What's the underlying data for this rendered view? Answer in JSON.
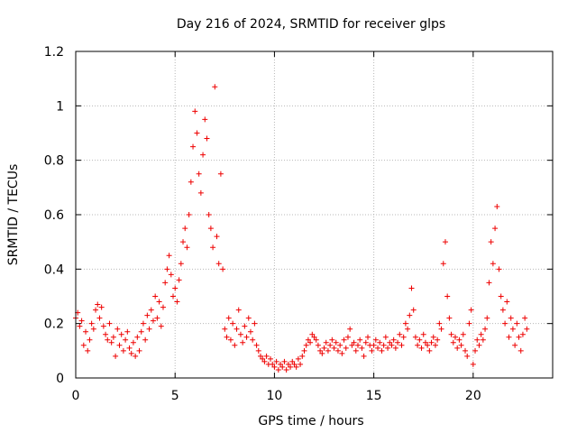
{
  "chart_data": {
    "type": "scatter",
    "title": "Day 216 of 2024, SRMTID for receiver glps",
    "xlabel": "GPS time / hours",
    "ylabel": "SRMTID / TECUs",
    "xlim": [
      0,
      24
    ],
    "ylim": [
      0,
      1.2
    ],
    "xticks": [
      0,
      5,
      10,
      15,
      20
    ],
    "yticks": [
      0,
      0.2,
      0.4,
      0.6,
      0.8,
      1,
      1.2
    ],
    "xtick_labels": [
      "0",
      "5",
      "10",
      "15",
      "20"
    ],
    "ytick_labels": [
      "0",
      "0.2",
      "0.4",
      "0.6",
      "0.8",
      "1",
      "1.2"
    ],
    "grid": true,
    "marker": "plus",
    "colors": {
      "series": "#ee0000",
      "grid": "#b8b8b8",
      "axes": "#000000"
    },
    "series": [
      {
        "name": "SRMTID",
        "points": [
          [
            0.0,
            0.22
          ],
          [
            0.1,
            0.24
          ],
          [
            0.2,
            0.19
          ],
          [
            0.3,
            0.21
          ],
          [
            0.4,
            0.12
          ],
          [
            0.5,
            0.17
          ],
          [
            0.6,
            0.1
          ],
          [
            0.7,
            0.14
          ],
          [
            0.8,
            0.2
          ],
          [
            0.9,
            0.18
          ],
          [
            1.0,
            0.25
          ],
          [
            1.1,
            0.27
          ],
          [
            1.2,
            0.22
          ],
          [
            1.3,
            0.26
          ],
          [
            1.4,
            0.19
          ],
          [
            1.5,
            0.16
          ],
          [
            1.6,
            0.14
          ],
          [
            1.7,
            0.2
          ],
          [
            1.8,
            0.13
          ],
          [
            1.9,
            0.15
          ],
          [
            2.0,
            0.08
          ],
          [
            2.1,
            0.18
          ],
          [
            2.2,
            0.12
          ],
          [
            2.3,
            0.16
          ],
          [
            2.4,
            0.1
          ],
          [
            2.5,
            0.14
          ],
          [
            2.6,
            0.17
          ],
          [
            2.7,
            0.11
          ],
          [
            2.8,
            0.09
          ],
          [
            2.9,
            0.13
          ],
          [
            3.0,
            0.08
          ],
          [
            3.1,
            0.15
          ],
          [
            3.2,
            0.1
          ],
          [
            3.3,
            0.17
          ],
          [
            3.4,
            0.2
          ],
          [
            3.5,
            0.14
          ],
          [
            3.6,
            0.23
          ],
          [
            3.7,
            0.18
          ],
          [
            3.8,
            0.25
          ],
          [
            3.9,
            0.21
          ],
          [
            4.0,
            0.3
          ],
          [
            4.1,
            0.22
          ],
          [
            4.2,
            0.28
          ],
          [
            4.3,
            0.19
          ],
          [
            4.4,
            0.26
          ],
          [
            4.5,
            0.35
          ],
          [
            4.6,
            0.4
          ],
          [
            4.7,
            0.45
          ],
          [
            4.8,
            0.38
          ],
          [
            4.9,
            0.3
          ],
          [
            5.0,
            0.33
          ],
          [
            5.1,
            0.28
          ],
          [
            5.2,
            0.36
          ],
          [
            5.3,
            0.42
          ],
          [
            5.4,
            0.5
          ],
          [
            5.5,
            0.55
          ],
          [
            5.6,
            0.48
          ],
          [
            5.7,
            0.6
          ],
          [
            5.8,
            0.72
          ],
          [
            5.9,
            0.85
          ],
          [
            6.0,
            0.98
          ],
          [
            6.1,
            0.9
          ],
          [
            6.2,
            0.75
          ],
          [
            6.3,
            0.68
          ],
          [
            6.4,
            0.82
          ],
          [
            6.5,
            0.95
          ],
          [
            6.6,
            0.88
          ],
          [
            6.7,
            0.6
          ],
          [
            6.8,
            0.55
          ],
          [
            6.9,
            0.48
          ],
          [
            7.0,
            1.07
          ],
          [
            7.1,
            0.52
          ],
          [
            7.2,
            0.42
          ],
          [
            7.3,
            0.75
          ],
          [
            7.4,
            0.4
          ],
          [
            7.5,
            0.18
          ],
          [
            7.6,
            0.15
          ],
          [
            7.7,
            0.22
          ],
          [
            7.8,
            0.14
          ],
          [
            7.9,
            0.2
          ],
          [
            8.0,
            0.12
          ],
          [
            8.1,
            0.18
          ],
          [
            8.2,
            0.25
          ],
          [
            8.3,
            0.16
          ],
          [
            8.4,
            0.13
          ],
          [
            8.5,
            0.19
          ],
          [
            8.6,
            0.15
          ],
          [
            8.7,
            0.22
          ],
          [
            8.8,
            0.17
          ],
          [
            8.9,
            0.14
          ],
          [
            9.0,
            0.2
          ],
          [
            9.1,
            0.12
          ],
          [
            9.2,
            0.1
          ],
          [
            9.3,
            0.08
          ],
          [
            9.4,
            0.07
          ],
          [
            9.5,
            0.06
          ],
          [
            9.6,
            0.08
          ],
          [
            9.7,
            0.05
          ],
          [
            9.8,
            0.07
          ],
          [
            9.9,
            0.05
          ],
          [
            10.0,
            0.04
          ],
          [
            10.1,
            0.06
          ],
          [
            10.2,
            0.03
          ],
          [
            10.3,
            0.05
          ],
          [
            10.4,
            0.04
          ],
          [
            10.5,
            0.06
          ],
          [
            10.6,
            0.03
          ],
          [
            10.7,
            0.05
          ],
          [
            10.8,
            0.04
          ],
          [
            10.9,
            0.06
          ],
          [
            11.0,
            0.05
          ],
          [
            11.1,
            0.04
          ],
          [
            11.2,
            0.07
          ],
          [
            11.3,
            0.05
          ],
          [
            11.4,
            0.08
          ],
          [
            11.5,
            0.1
          ],
          [
            11.6,
            0.12
          ],
          [
            11.7,
            0.14
          ],
          [
            11.8,
            0.13
          ],
          [
            11.9,
            0.16
          ],
          [
            12.0,
            0.15
          ],
          [
            12.1,
            0.14
          ],
          [
            12.2,
            0.12
          ],
          [
            12.3,
            0.1
          ],
          [
            12.4,
            0.09
          ],
          [
            12.5,
            0.11
          ],
          [
            12.6,
            0.13
          ],
          [
            12.7,
            0.1
          ],
          [
            12.8,
            0.12
          ],
          [
            12.9,
            0.14
          ],
          [
            13.0,
            0.11
          ],
          [
            13.1,
            0.13
          ],
          [
            13.2,
            0.1
          ],
          [
            13.3,
            0.12
          ],
          [
            13.4,
            0.09
          ],
          [
            13.5,
            0.14
          ],
          [
            13.6,
            0.11
          ],
          [
            13.7,
            0.15
          ],
          [
            13.8,
            0.18
          ],
          [
            13.9,
            0.12
          ],
          [
            14.0,
            0.13
          ],
          [
            14.1,
            0.1
          ],
          [
            14.2,
            0.12
          ],
          [
            14.3,
            0.14
          ],
          [
            14.4,
            0.11
          ],
          [
            14.5,
            0.08
          ],
          [
            14.6,
            0.13
          ],
          [
            14.7,
            0.15
          ],
          [
            14.8,
            0.12
          ],
          [
            14.9,
            0.1
          ],
          [
            15.0,
            0.12
          ],
          [
            15.1,
            0.14
          ],
          [
            15.2,
            0.11
          ],
          [
            15.3,
            0.13
          ],
          [
            15.4,
            0.1
          ],
          [
            15.5,
            0.12
          ],
          [
            15.6,
            0.15
          ],
          [
            15.7,
            0.11
          ],
          [
            15.8,
            0.13
          ],
          [
            15.9,
            0.12
          ],
          [
            16.0,
            0.14
          ],
          [
            16.1,
            0.11
          ],
          [
            16.2,
            0.13
          ],
          [
            16.3,
            0.16
          ],
          [
            16.4,
            0.12
          ],
          [
            16.5,
            0.15
          ],
          [
            16.6,
            0.2
          ],
          [
            16.7,
            0.18
          ],
          [
            16.8,
            0.23
          ],
          [
            16.9,
            0.33
          ],
          [
            17.0,
            0.25
          ],
          [
            17.1,
            0.15
          ],
          [
            17.2,
            0.12
          ],
          [
            17.3,
            0.14
          ],
          [
            17.4,
            0.11
          ],
          [
            17.5,
            0.16
          ],
          [
            17.6,
            0.13
          ],
          [
            17.7,
            0.12
          ],
          [
            17.8,
            0.1
          ],
          [
            17.9,
            0.13
          ],
          [
            18.0,
            0.15
          ],
          [
            18.1,
            0.12
          ],
          [
            18.2,
            0.14
          ],
          [
            18.3,
            0.2
          ],
          [
            18.4,
            0.18
          ],
          [
            18.5,
            0.42
          ],
          [
            18.6,
            0.5
          ],
          [
            18.7,
            0.3
          ],
          [
            18.8,
            0.22
          ],
          [
            18.9,
            0.16
          ],
          [
            19.0,
            0.13
          ],
          [
            19.1,
            0.15
          ],
          [
            19.2,
            0.11
          ],
          [
            19.3,
            0.14
          ],
          [
            19.4,
            0.12
          ],
          [
            19.5,
            0.16
          ],
          [
            19.6,
            0.1
          ],
          [
            19.7,
            0.08
          ],
          [
            19.8,
            0.2
          ],
          [
            19.9,
            0.25
          ],
          [
            20.0,
            0.05
          ],
          [
            20.1,
            0.1
          ],
          [
            20.2,
            0.14
          ],
          [
            20.3,
            0.12
          ],
          [
            20.4,
            0.16
          ],
          [
            20.5,
            0.14
          ],
          [
            20.6,
            0.18
          ],
          [
            20.7,
            0.22
          ],
          [
            20.8,
            0.35
          ],
          [
            20.9,
            0.5
          ],
          [
            21.0,
            0.42
          ],
          [
            21.1,
            0.55
          ],
          [
            21.2,
            0.63
          ],
          [
            21.3,
            0.4
          ],
          [
            21.4,
            0.3
          ],
          [
            21.5,
            0.25
          ],
          [
            21.6,
            0.2
          ],
          [
            21.7,
            0.28
          ],
          [
            21.8,
            0.15
          ],
          [
            21.9,
            0.22
          ],
          [
            22.0,
            0.18
          ],
          [
            22.1,
            0.12
          ],
          [
            22.2,
            0.2
          ],
          [
            22.3,
            0.15
          ],
          [
            22.4,
            0.1
          ],
          [
            22.5,
            0.16
          ],
          [
            22.6,
            0.22
          ],
          [
            22.7,
            0.18
          ]
        ]
      }
    ]
  }
}
